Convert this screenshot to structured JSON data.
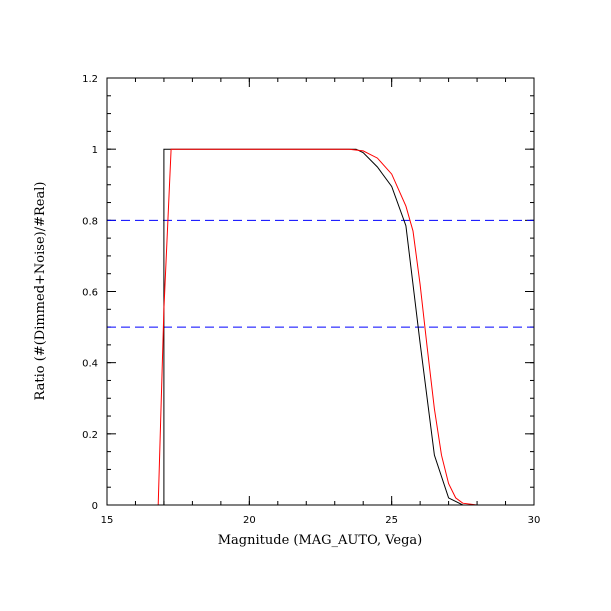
{
  "chart_data": {
    "type": "line",
    "xlabel": "Magnitude (MAG_AUTO, Vega)",
    "ylabel": "Ratio (#(Dimmed+Noise)/#Real)",
    "xlim": [
      15,
      30
    ],
    "ylim": [
      0,
      1.2
    ],
    "x_ticks": [
      15,
      20,
      25,
      30
    ],
    "y_ticks": [
      0,
      0.2,
      0.4,
      0.6,
      0.8,
      1,
      1.2
    ],
    "x_tick_labels": [
      "15",
      "20",
      "25",
      "30"
    ],
    "y_tick_labels": [
      "0",
      "0.2",
      "0.4",
      "0.6",
      "0.8",
      "1",
      "1.2"
    ],
    "grid": false,
    "series": [
      {
        "kind": "step-histogram",
        "color": "#000000",
        "x": [
          17.0,
          17.0,
          17.25,
          23.75,
          24.0,
          24.5,
          25.0,
          25.5,
          26.0,
          26.5,
          27.0,
          27.5,
          30.0
        ],
        "y": [
          0,
          1.0,
          1.0,
          1.0,
          0.99,
          0.95,
          0.895,
          0.785,
          0.455,
          0.14,
          0.02,
          0.0,
          0.0
        ]
      },
      {
        "kind": "fitted-curve",
        "color": "#ff0000",
        "x": [
          16.8,
          17.0,
          17.25,
          17.5,
          23.5,
          24.0,
          24.5,
          25.0,
          25.5,
          25.75,
          26.0,
          26.25,
          26.5,
          26.75,
          27.0,
          27.25,
          27.5,
          28.0,
          30.0
        ],
        "y": [
          0,
          0.55,
          1.0,
          1.0,
          1.0,
          0.995,
          0.975,
          0.93,
          0.84,
          0.77,
          0.62,
          0.44,
          0.27,
          0.14,
          0.06,
          0.02,
          0.005,
          0.0,
          0.0
        ]
      }
    ],
    "reference_lines": [
      {
        "y": 0.8,
        "color": "#0000ff",
        "style": "dashed"
      },
      {
        "y": 0.5,
        "color": "#0000ff",
        "style": "dashed"
      }
    ]
  }
}
